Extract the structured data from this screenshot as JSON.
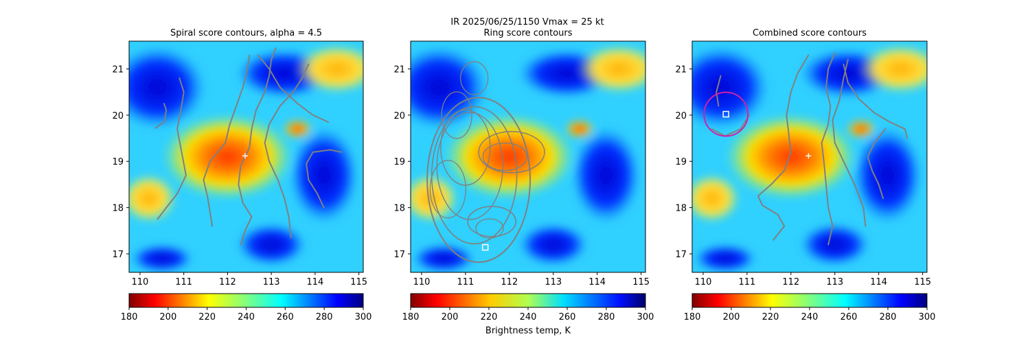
{
  "figure": {
    "suptitle_line1": "IR  2025/06/25/1150    Vmax = 25 kt",
    "colorbar_label": "Brightness temp, K"
  },
  "chart_data": [
    {
      "type": "heatmap",
      "title": "Spiral score contours, alpha =  4.5",
      "xlim": [
        109.75,
        115.1
      ],
      "ylim": [
        16.6,
        21.6
      ],
      "xticks": [
        110,
        111,
        112,
        113,
        114,
        115
      ],
      "yticks": [
        17,
        18,
        19,
        20,
        21
      ],
      "colormap": "jet_r",
      "contour_color": "#808080",
      "colorbar": {
        "ticks": [
          180,
          200,
          220,
          240,
          260,
          280,
          300
        ],
        "range": [
          180,
          300
        ],
        "colormap": "jet_r"
      },
      "center_marker": {
        "symbol": "+",
        "x": 112.4,
        "y": 19.12,
        "color": "#ffffff"
      }
    },
    {
      "type": "heatmap",
      "title": "Ring score contours",
      "xlim": [
        109.75,
        115.1
      ],
      "ylim": [
        16.6,
        21.6
      ],
      "xticks": [
        110,
        111,
        112,
        113,
        114,
        115
      ],
      "yticks": [
        17,
        18,
        19,
        20,
        21
      ],
      "colormap": "jet_r",
      "contour_color": "#808080",
      "colorbar": {
        "ticks": [
          180,
          200,
          220,
          240,
          260,
          280,
          300
        ],
        "range": [
          180,
          300
        ],
        "colormap": "jet"
      },
      "best_marker": {
        "symbol": "square",
        "x": 111.45,
        "y": 17.14,
        "color": "#ffffff"
      }
    },
    {
      "type": "heatmap",
      "title": "Combined score contours",
      "xlim": [
        109.75,
        115.1
      ],
      "ylim": [
        16.6,
        21.6
      ],
      "xticks": [
        110,
        111,
        112,
        113,
        114,
        115
      ],
      "yticks": [
        17,
        18,
        19,
        20,
        21
      ],
      "colormap": "jet_r",
      "contour_color": "#808080",
      "colorbar": {
        "ticks": [
          180,
          200,
          220,
          240,
          260,
          280,
          300
        ],
        "range": [
          180,
          300
        ],
        "colormap": "jet_r"
      },
      "center_marker": {
        "symbol": "+",
        "x": 112.4,
        "y": 19.12,
        "color": "#ffffff"
      },
      "best_marker": {
        "symbol": "square",
        "x": 110.52,
        "y": 20.02,
        "color": "#ffffff"
      },
      "ring": {
        "x": 110.52,
        "y": 20.02,
        "radius_deg": 0.5,
        "color": "#cc22aa"
      }
    }
  ]
}
